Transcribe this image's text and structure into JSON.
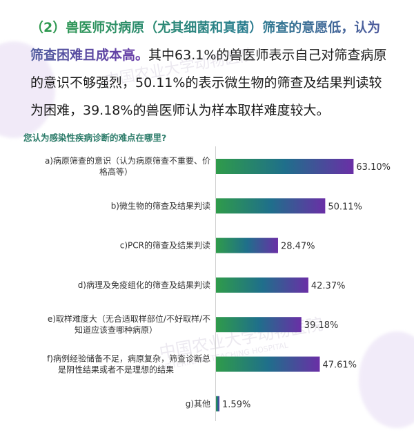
{
  "intro": {
    "highlight": "（2）兽医师对病原（尤其细菌和真菌）筛查的意愿低，认为筛查困难且成本高。",
    "body": "其中63.1%的兽医师表示自己对筛查病原的意识不够强烈，50.11%的表示微生物的筛查及结果判读较为困难，39.18%的兽医师认为样本取样难度较大。"
  },
  "watermark": {
    "line1": "中国农业大学动物医院",
    "line2": "VETERINARY TEACHING HOSPITAL"
  },
  "colors": {
    "bar_start": "#2f9b4a",
    "bar_mid": "#1f6f8b",
    "bar_end": "#6a2fa6",
    "label": "#333333",
    "question": "#2e7d6b"
  },
  "chart_data": {
    "type": "bar",
    "orientation": "horizontal",
    "title": "您认为感染性疾病诊断的难点在哪里?",
    "categories": [
      "a)病原筛查的意识（认为病原筛查不重要、价格高等）",
      "b)微生物的筛查及结果判读",
      "c)PCR的筛查及结果判读",
      "d)病理及免疫组化的筛查及结果判读",
      "e)取样难度大（无合适取样部位/不好取样/不知道应该查哪种病原）",
      "f)病例经验储备不足，病原复杂，筛查诊断总是阴性结果或者不是理想的结果",
      "g)其他"
    ],
    "category_lines": [
      [
        "a)病原筛查的意识（认为病原筛查不重要、价",
        "格高等）"
      ],
      [
        "b)微生物的筛查及结果判读"
      ],
      [
        "c)PCR的筛查及结果判读"
      ],
      [
        "d)病理及免疫组化的筛查及结果判读"
      ],
      [
        "e)取样难度大（无合适取样部位/不好取样/不",
        "知道应该查哪种病原）"
      ],
      [
        "f)病例经验储备不足，病原复杂，筛查诊断总",
        "是阴性结果或者不是理想的结果"
      ],
      [
        "g)其他"
      ]
    ],
    "values": [
      63.1,
      50.11,
      28.47,
      42.37,
      39.18,
      47.61,
      1.59
    ],
    "value_labels": [
      "63.10%",
      "50.11%",
      "28.47%",
      "42.37%",
      "39.18%",
      "47.61%",
      "1.59%"
    ],
    "xlim": [
      0,
      100
    ],
    "grid": false,
    "legend": "none"
  }
}
